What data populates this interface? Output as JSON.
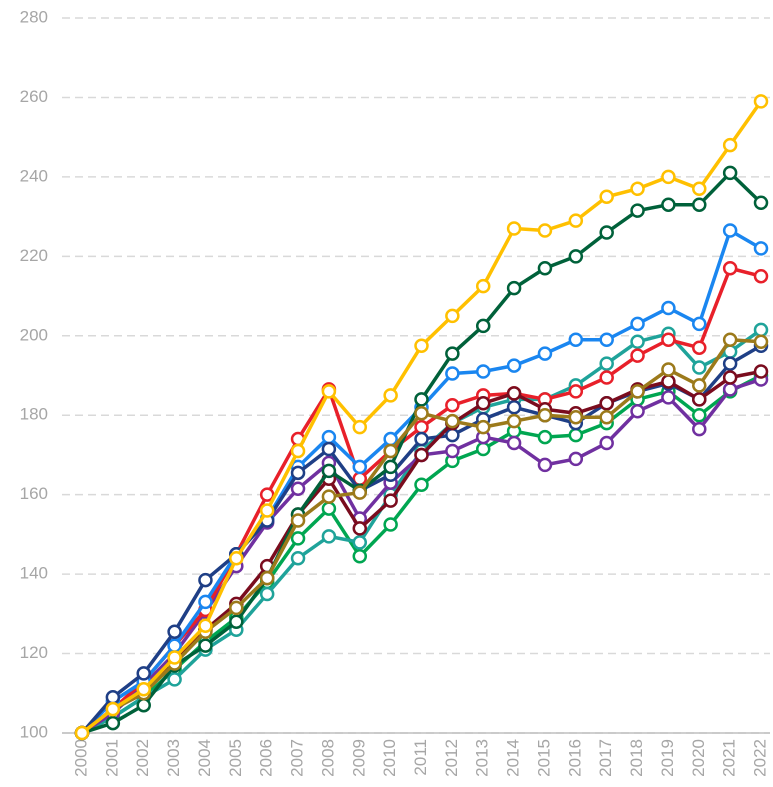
{
  "chart_data": {
    "type": "line",
    "categories": [
      "2000",
      "2001",
      "2002",
      "2003",
      "2004",
      "2005",
      "2006",
      "2007",
      "2008",
      "2009",
      "2010",
      "2011",
      "2012",
      "2013",
      "2014",
      "2015",
      "2016",
      "2017",
      "2018",
      "2019",
      "2020",
      "2021",
      "2022"
    ],
    "ylim": [
      100,
      280
    ],
    "yticks": [
      100,
      120,
      140,
      160,
      180,
      200,
      220,
      240,
      260,
      280
    ],
    "grid": true,
    "series": [
      {
        "color": "#00a651",
        "values": [
          100,
          104,
          109,
          116,
          123,
          129,
          138,
          149,
          156.5,
          144.5,
          152.5,
          162.5,
          168.5,
          171.5,
          176,
          174.5,
          175,
          178,
          184,
          186,
          180,
          186,
          190
        ]
      },
      {
        "color": "#1fa39a",
        "values": [
          100,
          104,
          109,
          113.5,
          121,
          126,
          135,
          144,
          149.5,
          148,
          160,
          171,
          178,
          182,
          184,
          184,
          187.5,
          193,
          198.5,
          200.5,
          192,
          196,
          201.5
        ]
      },
      {
        "color": "#7030a0",
        "values": [
          100,
          105,
          112,
          120,
          130.5,
          142,
          153,
          161.5,
          168,
          154,
          163,
          170,
          171,
          174.5,
          173,
          167.5,
          169,
          173,
          181,
          184.5,
          176.5,
          186.5,
          189
        ]
      },
      {
        "color": "#e8202a",
        "values": [
          100,
          106,
          113,
          122,
          131,
          145,
          160,
          174,
          186.5,
          164,
          171,
          177,
          182.5,
          185,
          185.5,
          184,
          186,
          189.5,
          195,
          199,
          197,
          217,
          215
        ]
      },
      {
        "color": "#1a86f0",
        "values": [
          100,
          108,
          113,
          122,
          133,
          145,
          154,
          167,
          174.5,
          167,
          174,
          182,
          190.5,
          191,
          192.5,
          195.5,
          199,
          199,
          203,
          207,
          203,
          226.5,
          222
        ]
      },
      {
        "color": "#1f3f86",
        "values": [
          100,
          109,
          115,
          125.5,
          138.5,
          145,
          153.5,
          165.5,
          171.5,
          161,
          165,
          174,
          175,
          179,
          182,
          180,
          178,
          183,
          186,
          188,
          184,
          193,
          197.5
        ]
      },
      {
        "color": "#7a0c1e",
        "values": [
          100,
          106,
          110,
          118,
          126,
          132.5,
          142,
          155,
          164,
          151.5,
          158.5,
          170,
          178,
          183,
          185.5,
          181.5,
          180.5,
          183,
          186.5,
          188.5,
          184,
          189.5,
          191
        ]
      },
      {
        "color": "#00613a",
        "values": [
          100,
          102.5,
          107,
          117,
          122,
          128,
          139,
          155,
          166,
          161,
          167,
          184,
          195.5,
          202.5,
          212,
          217,
          220,
          226,
          231.5,
          233,
          233,
          241,
          233.5
        ]
      },
      {
        "color": "#9c7a1b",
        "values": [
          100,
          106,
          110,
          117.5,
          125.5,
          131.5,
          139,
          153.5,
          159.5,
          160.5,
          171,
          180.5,
          178.5,
          177,
          178.5,
          180,
          179.5,
          179.5,
          186,
          191.5,
          187.5,
          199,
          198.5
        ]
      },
      {
        "color": "#ffc000",
        "values": [
          100,
          106,
          111,
          119,
          127,
          144,
          156,
          171,
          186,
          177,
          185,
          197.5,
          205,
          212.5,
          227,
          226.5,
          229,
          235,
          237,
          240,
          237,
          248,
          259
        ]
      }
    ]
  }
}
